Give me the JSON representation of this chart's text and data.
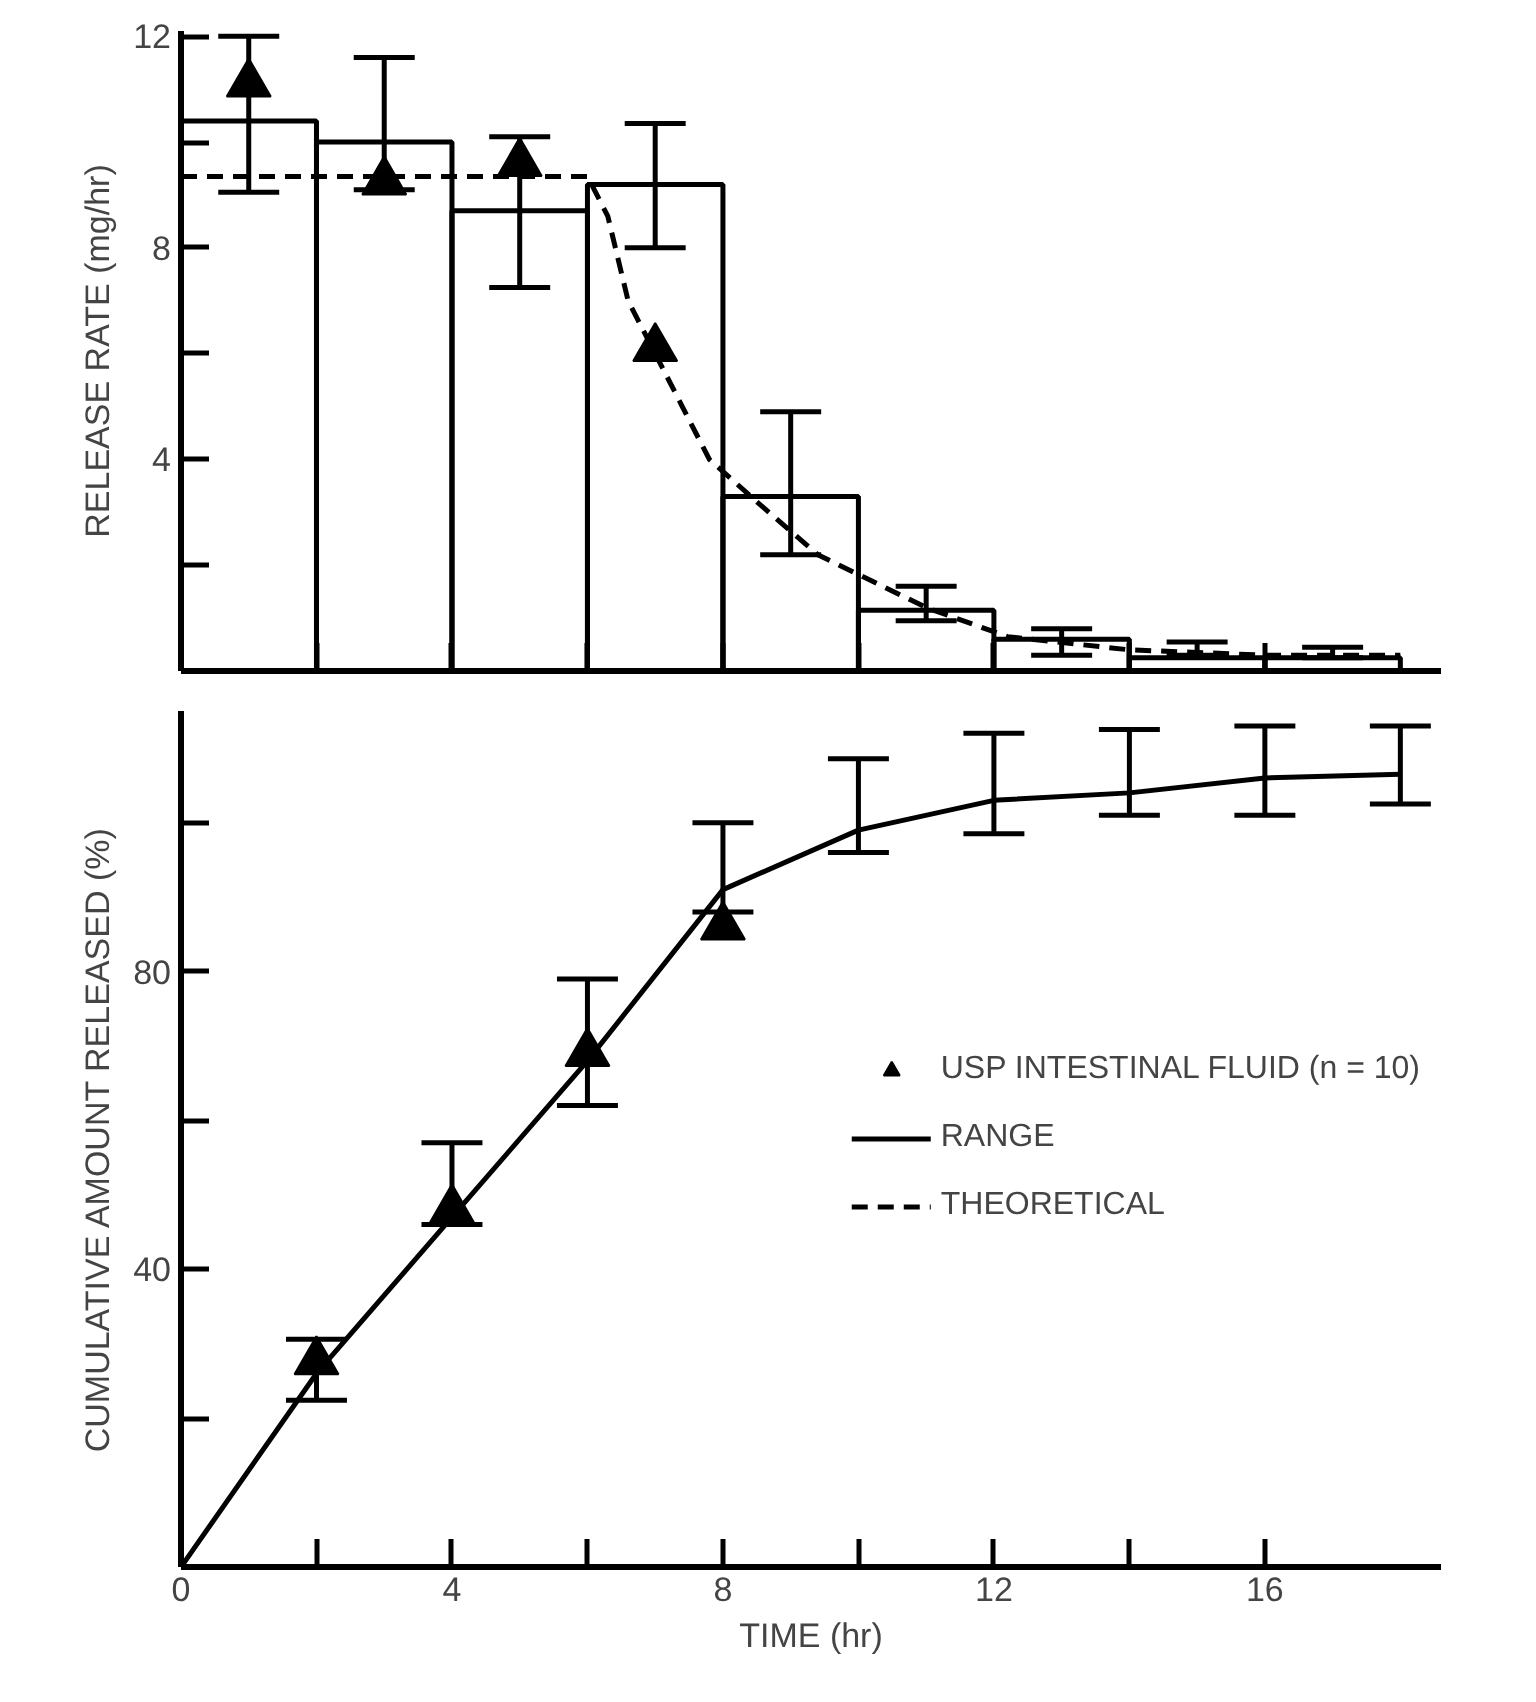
{
  "chart_data": [
    {
      "type": "histogram",
      "ylabel": "RELEASE RATE (mg/hr)",
      "bins": [
        0,
        2,
        4,
        6,
        8,
        10,
        12,
        14,
        16,
        18
      ],
      "values": [
        10.4,
        10.0,
        8.7,
        9.2,
        3.3,
        1.15,
        0.6,
        0.25,
        0.25
      ],
      "color": "#000000",
      "errors": [
        [
          9.05,
          12.0
        ],
        [
          9.1,
          11.6
        ],
        [
          7.25,
          10.1
        ],
        [
          8.0,
          10.35
        ],
        [
          2.2,
          4.9
        ],
        [
          0.95,
          1.6
        ],
        [
          0.3,
          0.8
        ],
        [
          0.3,
          0.55
        ],
        [
          0.25,
          0.45
        ]
      ],
      "series": [
        {
          "type": "scatter",
          "marker": "triangle",
          "color": "#000000",
          "x": [
            1,
            3,
            5,
            7
          ],
          "values": [
            11.1,
            9.25,
            9.6,
            6.1
          ]
        },
        {
          "type": "line",
          "name": "THEORETICAL",
          "line_style": "dashed",
          "color": "#000000",
          "x": [
            0,
            2,
            4,
            6,
            6.3,
            6.6,
            7,
            7.4,
            7.8,
            8.5,
            9.4,
            10.2,
            11,
            12.2,
            14,
            16,
            18
          ],
          "values": [
            9.35,
            9.35,
            9.35,
            9.35,
            8.6,
            7.0,
            6.0,
            5.0,
            4.0,
            3.2,
            2.2,
            1.7,
            1.2,
            0.65,
            0.4,
            0.3,
            0.3
          ]
        }
      ],
      "xlim": [
        0,
        18.6
      ],
      "ylim": [
        0,
        12.1
      ],
      "xticks": [
        {
          "value": 2,
          "label": null
        },
        {
          "value": 4,
          "label": null
        },
        {
          "value": 6,
          "label": null
        },
        {
          "value": 8,
          "label": null
        },
        {
          "value": 10,
          "label": null
        },
        {
          "value": 12,
          "label": null
        },
        {
          "value": 14,
          "label": null
        },
        {
          "value": 16,
          "label": null
        }
      ],
      "yticks": [
        {
          "value": 2,
          "label": null
        },
        4,
        {
          "value": 6,
          "label": null
        },
        8,
        {
          "value": 10,
          "label": null
        },
        12
      ],
      "tick_labels": "y",
      "grid": false
    },
    {
      "type": "line",
      "xlabel": "TIME (hr)",
      "ylabel": "CUMULATIVE AMOUNT RELEASED (%)",
      "annotations": [
        "RANGE"
      ],
      "series": [
        {
          "type": "line",
          "color": "#000000",
          "line_style": "solid",
          "marker": "none",
          "x": [
            0,
            2,
            4,
            6,
            8,
            10,
            12,
            14,
            16,
            18
          ],
          "values": [
            0,
            26,
            47,
            68,
            91,
            99,
            103,
            104,
            106,
            106.5
          ],
          "errors": [
            null,
            [
              22.4,
              30.6
            ],
            [
              46,
              57
            ],
            [
              62,
              79
            ],
            [
              88,
              100
            ],
            [
              96,
              108.6
            ],
            [
              98.5,
              112
            ],
            [
              101,
              112.5
            ],
            [
              101,
              113
            ],
            [
              102.5,
              113
            ]
          ]
        },
        {
          "type": "scatter",
          "name": "USP INTESTINAL FLUID (n = 10)",
          "marker": "triangle",
          "color": "#000000",
          "x": [
            2,
            4,
            6,
            8
          ],
          "values": [
            27.6,
            48,
            69,
            86
          ]
        }
      ],
      "xlim": [
        0,
        18.6
      ],
      "ylim": [
        0,
        115
      ],
      "xticks": [
        0,
        {
          "value": 2,
          "label": null
        },
        4,
        {
          "value": 6,
          "label": null
        },
        8,
        {
          "value": 10,
          "label": null
        },
        12,
        {
          "value": 14,
          "label": null
        },
        16
      ],
      "yticks": [
        {
          "value": 20,
          "label": null
        },
        40,
        {
          "value": 60,
          "label": null
        },
        80,
        {
          "value": 100,
          "label": null
        }
      ],
      "grid": false,
      "legend": "right"
    }
  ]
}
